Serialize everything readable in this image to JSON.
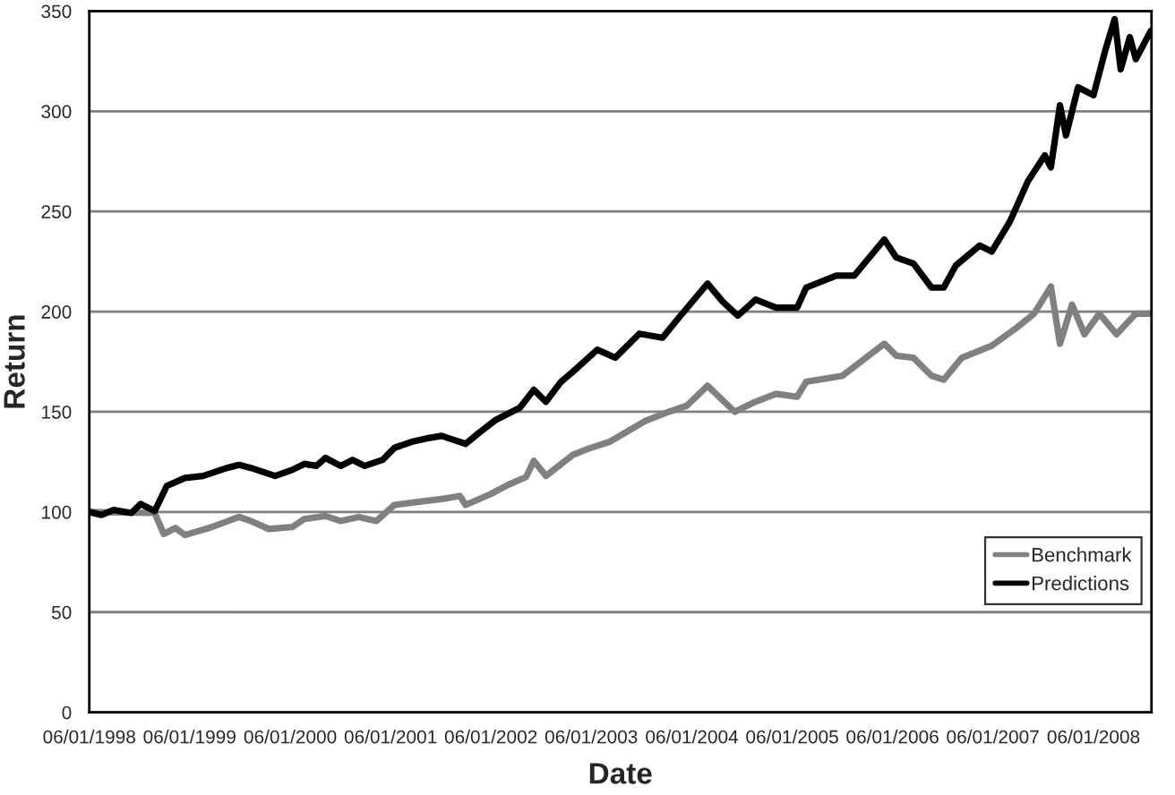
{
  "chart_data": {
    "type": "line",
    "xlabel": "Date",
    "ylabel": "Return",
    "xlim": [
      "1998-06-01",
      "2008-12-29"
    ],
    "xticks": [
      {
        "value": "1998-06-01",
        "label": "06/01/1998"
      },
      {
        "value": "1999-06-01",
        "label": "06/01/1999"
      },
      {
        "value": "2000-06-01",
        "label": "06/01/2000"
      },
      {
        "value": "2001-06-01",
        "label": "06/01/2001"
      },
      {
        "value": "2002-06-01",
        "label": "06/01/2002"
      },
      {
        "value": "2003-06-01",
        "label": "06/01/2003"
      },
      {
        "value": "2004-06-01",
        "label": "06/01/2004"
      },
      {
        "value": "2005-06-01",
        "label": "06/01/2005"
      },
      {
        "value": "2006-06-01",
        "label": "06/01/2006"
      },
      {
        "value": "2007-06-01",
        "label": "06/01/2007"
      },
      {
        "value": "2008-06-01",
        "label": "06/01/2008"
      }
    ],
    "ylim": [
      0,
      350
    ],
    "yticks": [
      0,
      50,
      100,
      150,
      200,
      250,
      300,
      350
    ],
    "grid": "y",
    "legend": "right",
    "marker": "none",
    "line_style": "solid",
    "series": [
      {
        "name": "Benchmark",
        "color": "#808080",
        "x": [
          "1998-06-01",
          "1999-01-25",
          "1999-02-27",
          "1999-04-10",
          "1999-05-15",
          "1999-08-10",
          "1999-11-28",
          "2000-01-10",
          "2000-03-15",
          "2000-06-08",
          "2000-07-22",
          "2000-10-07",
          "2000-12-01",
          "2001-02-05",
          "2001-04-10",
          "2001-06-15",
          "2001-09-07",
          "2001-12-04",
          "2002-02-08",
          "2002-03-01",
          "2002-06-01",
          "2002-08-02",
          "2002-10-07",
          "2002-11-04",
          "2002-12-18",
          "2003-03-26",
          "2003-05-20",
          "2003-08-06",
          "2003-12-15",
          "2004-03-09",
          "2004-05-13",
          "2004-07-28",
          "2004-11-04",
          "2005-01-09",
          "2005-04-03",
          "2005-06-19",
          "2005-07-22",
          "2005-12-01",
          "2006-05-02",
          "2006-06-15",
          "2006-08-16",
          "2006-10-21",
          "2006-12-04",
          "2007-02-08",
          "2007-05-28",
          "2007-08-24",
          "2007-10-29",
          "2007-12-29",
          "2008-01-31",
          "2008-03-15",
          "2008-04-29",
          "2008-06-22",
          "2008-08-24",
          "2008-11-02",
          "2008-12-26"
        ],
        "values": [
          100,
          99.5,
          89,
          92,
          88.5,
          92,
          97.5,
          95.5,
          91.5,
          92.5,
          96.5,
          98,
          95.5,
          97.5,
          95.5,
          103.5,
          105,
          106.5,
          108,
          103.5,
          109,
          113.5,
          117.5,
          125.5,
          118,
          128.5,
          131.5,
          135,
          145.5,
          150,
          153,
          163,
          150,
          154.5,
          159,
          157.5,
          165,
          168,
          184,
          178,
          177,
          168,
          166,
          177,
          183,
          191.7,
          199,
          212.5,
          184,
          203.5,
          188.7,
          199,
          188.7,
          199,
          199
        ]
      },
      {
        "name": "Predictions",
        "color": "#000000",
        "x": [
          "1998-06-01",
          "1998-07-15",
          "1998-08-28",
          "1998-11-01",
          "1998-12-05",
          "1999-01-25",
          "1999-03-10",
          "1999-05-15",
          "1999-07-20",
          "1999-10-15",
          "1999-11-28",
          "2000-01-10",
          "2000-04-07",
          "2000-06-08",
          "2000-07-22",
          "2000-09-04",
          "2000-10-07",
          "2000-12-01",
          "2001-01-14",
          "2001-02-27",
          "2001-05-03",
          "2001-06-15",
          "2001-08-16",
          "2001-10-21",
          "2001-12-04",
          "2002-03-01",
          "2002-04-14",
          "2002-06-19",
          "2002-09-14",
          "2002-11-04",
          "2002-12-18",
          "2003-02-11",
          "2003-03-26",
          "2003-06-23",
          "2003-08-27",
          "2003-11-23",
          "2004-02-15",
          "2004-04-21",
          "2004-07-28",
          "2004-09-21",
          "2004-11-15",
          "2005-01-19",
          "2005-04-03",
          "2005-06-19",
          "2005-07-22",
          "2005-11-08",
          "2006-01-13",
          "2006-05-02",
          "2006-06-15",
          "2006-08-16",
          "2006-10-21",
          "2006-12-04",
          "2007-01-17",
          "2007-04-14",
          "2007-05-28",
          "2007-08-02",
          "2007-10-06",
          "2007-12-07",
          "2007-12-29",
          "2008-01-31",
          "2008-02-22",
          "2008-04-06",
          "2008-06-01",
          "2008-07-15",
          "2008-08-17",
          "2008-09-08",
          "2008-10-11",
          "2008-11-02",
          "2008-12-26"
        ],
        "values": [
          100,
          98.5,
          101,
          99.5,
          104,
          100.5,
          113,
          117,
          118,
          122,
          123.5,
          122,
          118,
          121,
          124,
          123,
          127,
          123,
          126,
          123,
          126,
          132,
          135,
          137,
          138,
          134,
          139,
          146,
          152,
          161,
          155,
          165,
          170,
          181,
          177,
          189,
          187,
          198,
          214,
          205,
          198,
          206,
          202,
          202,
          212,
          218,
          218,
          236,
          227,
          224,
          212,
          212,
          223,
          233,
          230,
          245,
          265,
          278,
          272,
          303,
          288,
          312,
          308,
          331,
          346,
          321,
          337,
          326,
          340
        ]
      }
    ]
  }
}
